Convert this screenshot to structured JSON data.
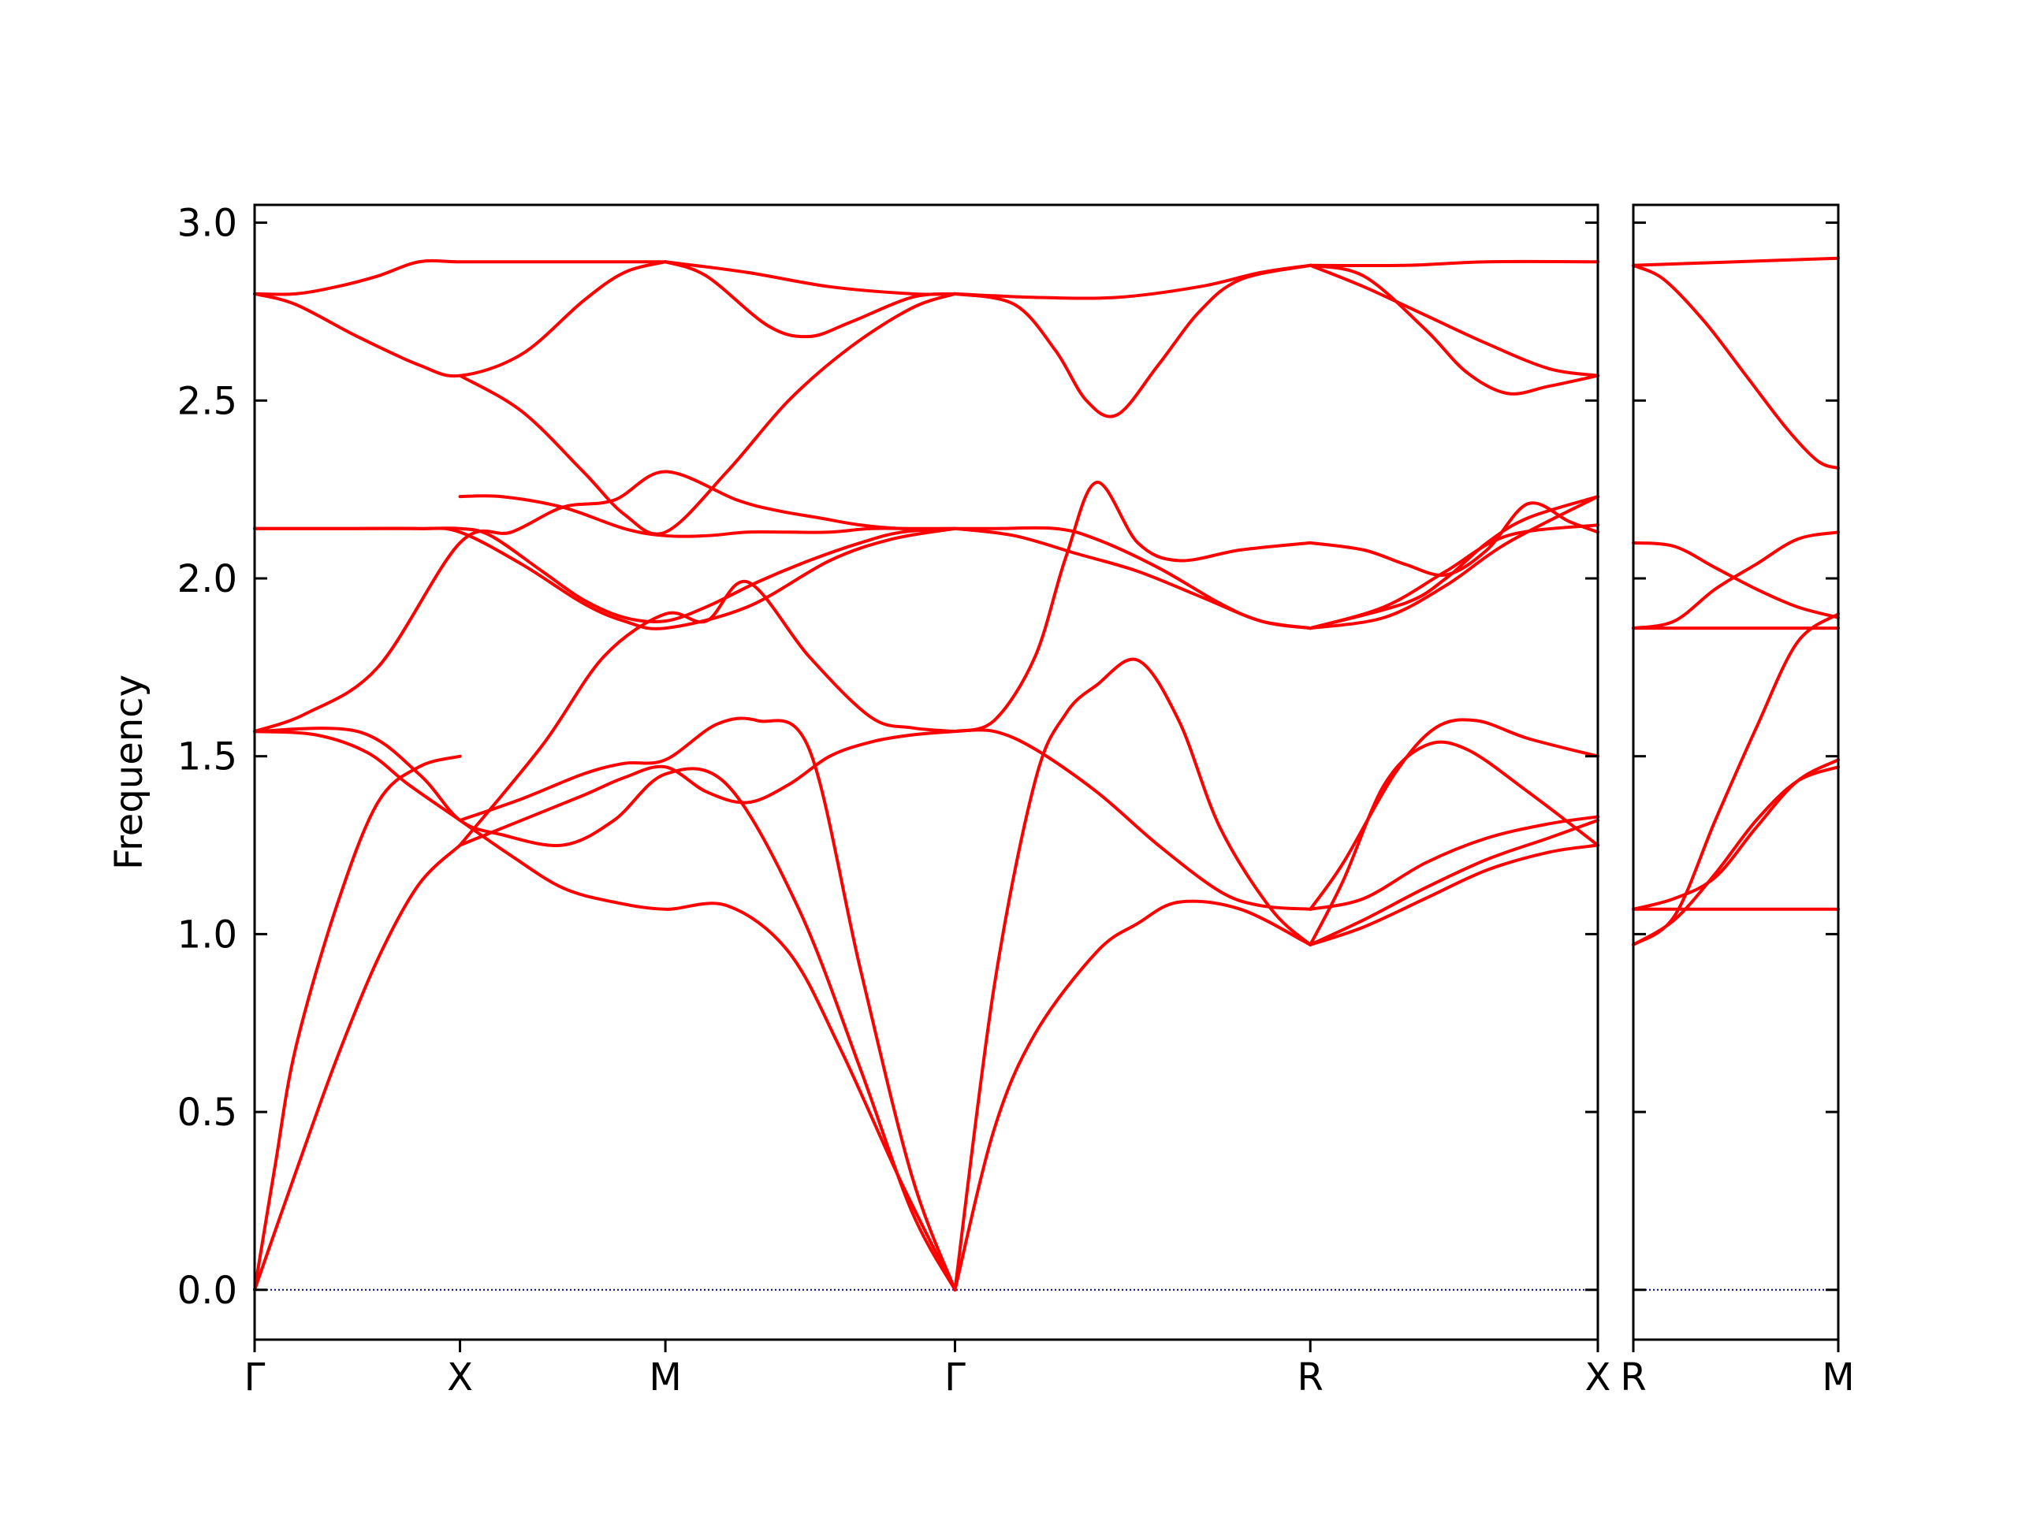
{
  "chart_data": {
    "type": "line",
    "ylabel": "Frequency",
    "ylim": [
      -0.14,
      3.05
    ],
    "yticks": [
      "0.0",
      "0.5",
      "1.0",
      "1.5",
      "2.0",
      "2.5",
      "3.0"
    ],
    "ytick_values": [
      0.0,
      0.5,
      1.0,
      1.5,
      2.0,
      2.5,
      3.0
    ],
    "colors": {
      "bands": "#ff0000",
      "zero_line": "#00008b",
      "axes": "#000000"
    },
    "grid": false,
    "zero_line": "dotted",
    "panels": [
      {
        "name": "main",
        "xlim": [
          0,
          6.54
        ],
        "xticks": [
          "Γ",
          "X",
          "M",
          "Γ",
          "R",
          "X"
        ],
        "xtick_positions": [
          0,
          1.0,
          2.0,
          3.41,
          5.14,
          6.54
        ],
        "bands": [
          {
            "x": [
              0,
              0.1,
              0.2,
              0.4,
              0.6,
              0.8,
              1.0
            ],
            "y": [
              0,
              0.35,
              0.68,
              1.08,
              1.37,
              1.47,
              1.5
            ]
          },
          {
            "x": [
              0,
              0.2,
              0.4,
              0.6,
              0.8,
              1.0
            ],
            "y": [
              0,
              0.33,
              0.65,
              0.93,
              1.14,
              1.25
            ]
          },
          {
            "x": [
              0,
              0.3,
              0.55,
              0.75,
              1.0,
              1.25,
              1.5,
              1.75,
              2.0,
              2.3,
              2.6,
              2.85,
              3.15,
              3.41
            ],
            "y": [
              1.57,
              1.56,
              1.51,
              1.42,
              1.32,
              1.22,
              1.13,
              1.09,
              1.07,
              1.08,
              0.95,
              0.68,
              0.3,
              0
            ]
          },
          {
            "x": [
              0,
              0.5,
              0.8,
              1.0,
              1.2,
              1.5,
              1.75,
              2.0,
              2.3,
              2.65,
              2.95,
              3.2,
              3.41
            ],
            "y": [
              1.57,
              1.57,
              1.45,
              1.32,
              1.28,
              1.25,
              1.32,
              1.45,
              1.42,
              1.07,
              0.62,
              0.22,
              0
            ]
          },
          {
            "x": [
              0,
              0.25,
              0.6,
              1.0,
              1.25,
              1.5,
              1.75,
              2.0,
              2.35,
              2.55,
              2.75,
              2.95,
              3.15,
              3.41
            ],
            "y": [
              1.57,
              1.62,
              1.75,
              2.1,
              2.13,
              2.2,
              2.22,
              2.3,
              2.22,
              2.19,
              2.17,
              2.15,
              2.14,
              2.14
            ]
          },
          {
            "x": [
              0,
              0.4,
              0.8,
              1.0,
              1.3,
              1.6,
              1.8,
              2.0,
              2.4,
              2.8,
              3.1,
              3.41
            ],
            "y": [
              2.14,
              2.14,
              2.14,
              2.13,
              2.04,
              1.93,
              1.88,
              1.86,
              1.92,
              2.05,
              2.11,
              2.14
            ]
          },
          {
            "x": [
              0,
              0.4,
              0.8,
              1.0,
              1.15,
              1.4,
              1.6,
              1.8,
              2.0,
              2.2,
              2.45,
              2.7,
              2.95,
              3.15,
              3.41
            ],
            "y": [
              2.14,
              2.14,
              2.14,
              2.14,
              2.12,
              2.02,
              1.94,
              1.89,
              1.88,
              1.92,
              1.99,
              2.05,
              2.1,
              2.13,
              2.14
            ]
          },
          {
            "x": [
              1.0,
              1.3,
              1.6,
              1.8,
              2.0,
              2.2,
              2.4,
              2.6,
              2.8,
              3.0,
              3.2,
              3.41
            ],
            "y": [
              1.25,
              1.32,
              1.39,
              1.44,
              1.47,
              1.4,
              1.37,
              1.42,
              1.5,
              1.54,
              1.56,
              1.57
            ]
          },
          {
            "x": [
              1.0,
              1.3,
              1.6,
              1.8,
              2.0,
              2.25,
              2.45,
              2.7,
              2.95,
              3.2,
              3.41
            ],
            "y": [
              1.32,
              1.38,
              1.45,
              1.48,
              1.49,
              1.59,
              1.6,
              1.52,
              0.9,
              0.32,
              0
            ]
          },
          {
            "x": [
              1.0,
              1.4,
              1.7,
              2.0,
              2.2,
              2.4,
              2.7,
              3.0,
              3.2,
              3.41
            ],
            "y": [
              1.25,
              1.53,
              1.78,
              1.9,
              1.88,
              1.99,
              1.78,
              1.61,
              1.58,
              1.57
            ]
          },
          {
            "x": [
              1.0,
              1.2,
              1.5,
              1.8,
              2.0,
              2.2,
              2.4,
              2.6,
              2.8,
              3.0,
              3.2,
              3.41
            ],
            "y": [
              2.23,
              2.23,
              2.2,
              2.14,
              2.12,
              2.12,
              2.13,
              2.13,
              2.13,
              2.14,
              2.14,
              2.14
            ]
          },
          {
            "x": [
              0,
              0.2,
              0.4,
              0.6,
              0.8,
              1.0,
              1.3,
              1.6,
              1.8,
              2.0
            ],
            "y": [
              2.8,
              2.8,
              2.82,
              2.85,
              2.89,
              2.89,
              2.89,
              2.89,
              2.89,
              2.89
            ]
          },
          {
            "x": [
              0,
              0.2,
              0.5,
              0.8,
              1.0,
              1.3,
              1.6,
              1.8,
              2.0
            ],
            "y": [
              2.8,
              2.77,
              2.68,
              2.6,
              2.57,
              2.63,
              2.78,
              2.86,
              2.89
            ]
          },
          {
            "x": [
              1.0,
              1.3,
              1.6,
              1.8,
              2.0,
              2.3,
              2.6,
              2.9,
              3.2,
              3.41
            ],
            "y": [
              2.57,
              2.47,
              2.3,
              2.18,
              2.13,
              2.3,
              2.5,
              2.65,
              2.76,
              2.8
            ]
          },
          {
            "x": [
              2.0,
              2.2,
              2.5,
              2.7,
              2.9,
              3.2,
              3.41
            ],
            "y": [
              2.89,
              2.85,
              2.71,
              2.68,
              2.72,
              2.79,
              2.8
            ]
          },
          {
            "x": [
              2.0,
              2.4,
              2.8,
              3.2,
              3.41
            ],
            "y": [
              2.89,
              2.86,
              2.82,
              2.8,
              2.8
            ]
          },
          {
            "x": [
              3.41,
              3.6,
              3.8,
              4.1,
              4.3,
              4.5,
              4.8,
              5.14
            ],
            "y": [
              0,
              0.45,
              0.72,
              0.95,
              1.03,
              1.09,
              1.07,
              0.97
            ]
          },
          {
            "x": [
              3.41,
              3.6,
              3.8,
              3.95,
              4.1,
              4.3,
              4.5,
              4.7,
              4.95,
              5.14
            ],
            "y": [
              0,
              0.85,
              1.43,
              1.62,
              1.7,
              1.77,
              1.6,
              1.3,
              1.07,
              0.97
            ]
          },
          {
            "x": [
              3.41,
              3.6,
              3.8,
              4.1,
              4.4,
              4.7,
              4.9,
              5.14
            ],
            "y": [
              1.57,
              1.57,
              1.52,
              1.4,
              1.25,
              1.12,
              1.08,
              1.07
            ]
          },
          {
            "x": [
              3.41,
              3.6,
              3.8,
              3.95,
              4.1,
              4.3,
              4.5,
              4.8,
              5.14
            ],
            "y": [
              1.57,
              1.6,
              1.78,
              2.06,
              2.27,
              2.1,
              2.05,
              2.08,
              2.1
            ]
          },
          {
            "x": [
              3.41,
              3.7,
              4.0,
              4.3,
              4.6,
              4.9,
              5.14
            ],
            "y": [
              2.14,
              2.12,
              2.07,
              2.02,
              1.95,
              1.88,
              1.86
            ]
          },
          {
            "x": [
              3.41,
              3.6,
              3.9,
              4.1,
              4.4,
              4.7,
              4.9,
              5.14
            ],
            "y": [
              2.14,
              2.14,
              2.14,
              2.11,
              2.03,
              1.93,
              1.88,
              1.86
            ]
          },
          {
            "x": [
              3.41,
              3.8,
              4.2,
              4.6,
              4.9,
              5.14
            ],
            "y": [
              2.8,
              2.79,
              2.79,
              2.82,
              2.86,
              2.88
            ]
          },
          {
            "x": [
              3.41,
              3.7,
              3.9,
              4.05,
              4.2,
              4.4,
              4.6,
              4.8,
              5.14
            ],
            "y": [
              2.8,
              2.77,
              2.64,
              2.5,
              2.46,
              2.6,
              2.75,
              2.84,
              2.88
            ]
          },
          {
            "x": [
              5.14,
              5.4,
              5.7,
              6.0,
              6.3,
              6.54
            ],
            "y": [
              0.97,
              1.02,
              1.1,
              1.18,
              1.23,
              1.25
            ]
          },
          {
            "x": [
              5.14,
              5.4,
              5.7,
              6.0,
              6.3,
              6.54
            ],
            "y": [
              0.97,
              1.04,
              1.13,
              1.21,
              1.27,
              1.32
            ]
          },
          {
            "x": [
              5.14,
              5.4,
              5.7,
              6.0,
              6.3,
              6.54
            ],
            "y": [
              1.07,
              1.1,
              1.2,
              1.27,
              1.31,
              1.33
            ]
          },
          {
            "x": [
              5.14,
              5.3,
              5.5,
              5.7,
              5.9,
              6.2,
              6.54
            ],
            "y": [
              0.97,
              1.15,
              1.42,
              1.53,
              1.52,
              1.4,
              1.25
            ]
          },
          {
            "x": [
              5.14,
              5.3,
              5.55,
              5.75,
              5.95,
              6.2,
              6.54
            ],
            "y": [
              1.07,
              1.2,
              1.45,
              1.58,
              1.6,
              1.55,
              1.5
            ]
          },
          {
            "x": [
              5.14,
              5.5,
              5.8,
              6.1,
              6.54
            ],
            "y": [
              1.86,
              1.89,
              1.98,
              2.1,
              2.23
            ]
          },
          {
            "x": [
              5.14,
              5.5,
              5.8,
              6.1,
              6.54
            ],
            "y": [
              1.86,
              1.92,
              2.02,
              2.12,
              2.15
            ]
          },
          {
            "x": [
              5.14,
              5.4,
              5.6,
              5.8,
              6.0,
              6.2,
              6.4,
              6.54
            ],
            "y": [
              2.1,
              2.08,
              2.04,
              2.01,
              2.08,
              2.21,
              2.16,
              2.13
            ]
          },
          {
            "x": [
              5.14,
              5.6,
              5.8,
              6.0,
              6.2,
              6.54
            ],
            "y": [
              1.86,
              1.93,
              2.0,
              2.1,
              2.17,
              2.23
            ]
          },
          {
            "x": [
              5.14,
              5.4,
              5.7,
              6.0,
              6.3,
              6.54
            ],
            "y": [
              2.88,
              2.82,
              2.74,
              2.66,
              2.59,
              2.57
            ]
          },
          {
            "x": [
              5.14,
              5.4,
              5.7,
              5.9,
              6.1,
              6.3,
              6.54
            ],
            "y": [
              2.88,
              2.85,
              2.7,
              2.58,
              2.52,
              2.54,
              2.57
            ]
          },
          {
            "x": [
              5.14,
              5.6,
              6.0,
              6.54
            ],
            "y": [
              2.88,
              2.88,
              2.89,
              2.89
            ]
          }
        ]
      },
      {
        "name": "right",
        "xlim": [
          0,
          1.0
        ],
        "xticks": [
          "R",
          "M"
        ],
        "xtick_positions": [
          0,
          1.0
        ],
        "bands": [
          {
            "x": [
              0,
              0.2,
              0.4,
              0.6,
              0.8,
              1.0
            ],
            "y": [
              0.97,
              1.04,
              1.17,
              1.32,
              1.43,
              1.47
            ]
          },
          {
            "x": [
              0,
              0.2,
              0.4,
              0.6,
              0.8,
              1.0
            ],
            "y": [
              1.07,
              1.1,
              1.16,
              1.3,
              1.43,
              1.49
            ]
          },
          {
            "x": [
              0,
              1.0
            ],
            "y": [
              1.07,
              1.07
            ]
          },
          {
            "x": [
              0,
              0.2,
              0.4,
              0.6,
              0.8,
              1.0
            ],
            "y": [
              0.97,
              1.05,
              1.32,
              1.58,
              1.82,
              1.9
            ]
          },
          {
            "x": [
              0,
              1.0
            ],
            "y": [
              1.86,
              1.86
            ]
          },
          {
            "x": [
              0,
              0.2,
              0.4,
              0.6,
              0.8,
              1.0
            ],
            "y": [
              1.86,
              1.88,
              1.97,
              2.04,
              2.11,
              2.13
            ]
          },
          {
            "x": [
              0,
              0.2,
              0.4,
              0.6,
              0.8,
              1.0
            ],
            "y": [
              2.1,
              2.09,
              2.03,
              1.97,
              1.92,
              1.89
            ]
          },
          {
            "x": [
              0,
              0.15,
              0.35,
              0.55,
              0.75,
              0.9,
              1.0
            ],
            "y": [
              2.88,
              2.84,
              2.72,
              2.57,
              2.42,
              2.33,
              2.31
            ]
          },
          {
            "x": [
              0,
              0.5,
              1.0
            ],
            "y": [
              2.88,
              2.89,
              2.9
            ]
          }
        ]
      }
    ]
  }
}
